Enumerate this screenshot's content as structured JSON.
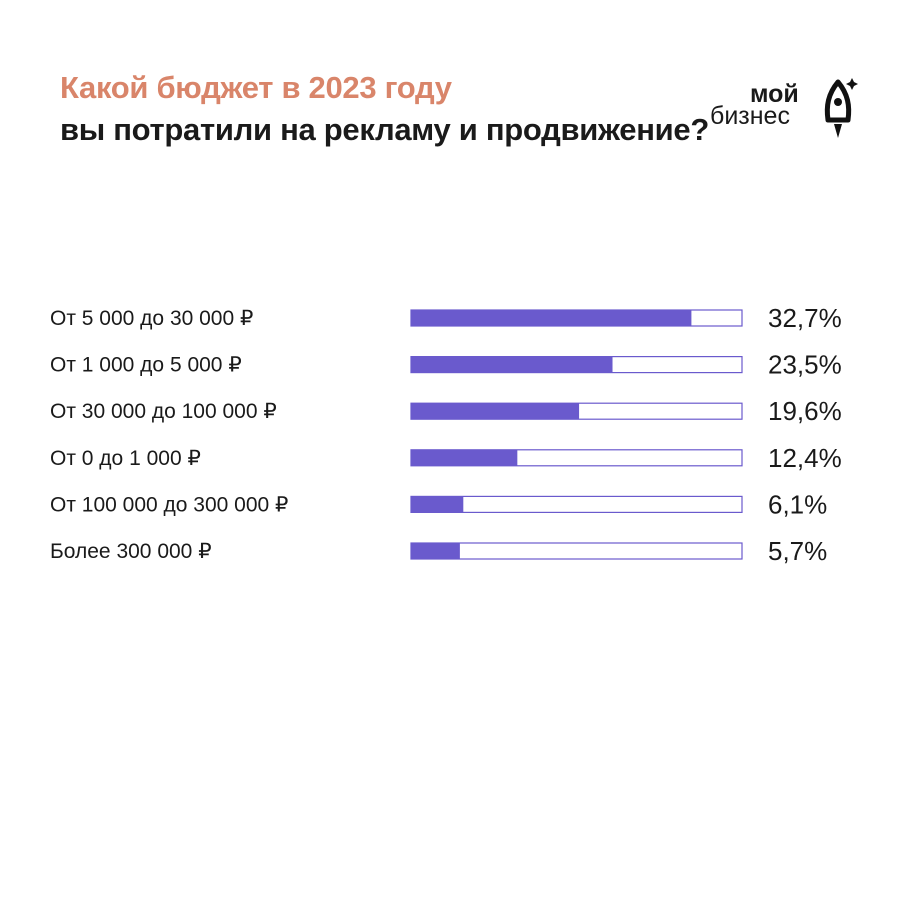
{
  "title": {
    "line1": "Какой бюджет в 2023 году",
    "line2": "вы потратили на рекламу и продвижение?"
  },
  "logo": {
    "word1": "мой",
    "word2": "бизнес",
    "icon": "rocket-icon"
  },
  "colors": {
    "accent": "#D9856A",
    "bar": "#6A5ACD",
    "bar_border": "#6A5ACD",
    "text": "#1a1a1a"
  },
  "chart_data": {
    "type": "bar",
    "orientation": "horizontal",
    "categories": [
      "От 5 000 до 30 000 ₽",
      "От 1 000 до 5 000 ₽",
      "От 30 000 до 100 000 ₽",
      "От 0 до 1 000 ₽",
      "От 100 000 до 300 000 ₽",
      "Более 300 000 ₽"
    ],
    "values": [
      32.7,
      23.5,
      19.6,
      12.4,
      6.1,
      5.7
    ],
    "value_labels": [
      "32,7%",
      "23,5%",
      "19,6%",
      "12,4%",
      "6,1%",
      "5,7%"
    ],
    "xlim": [
      0,
      38.6
    ],
    "grid": false
  }
}
